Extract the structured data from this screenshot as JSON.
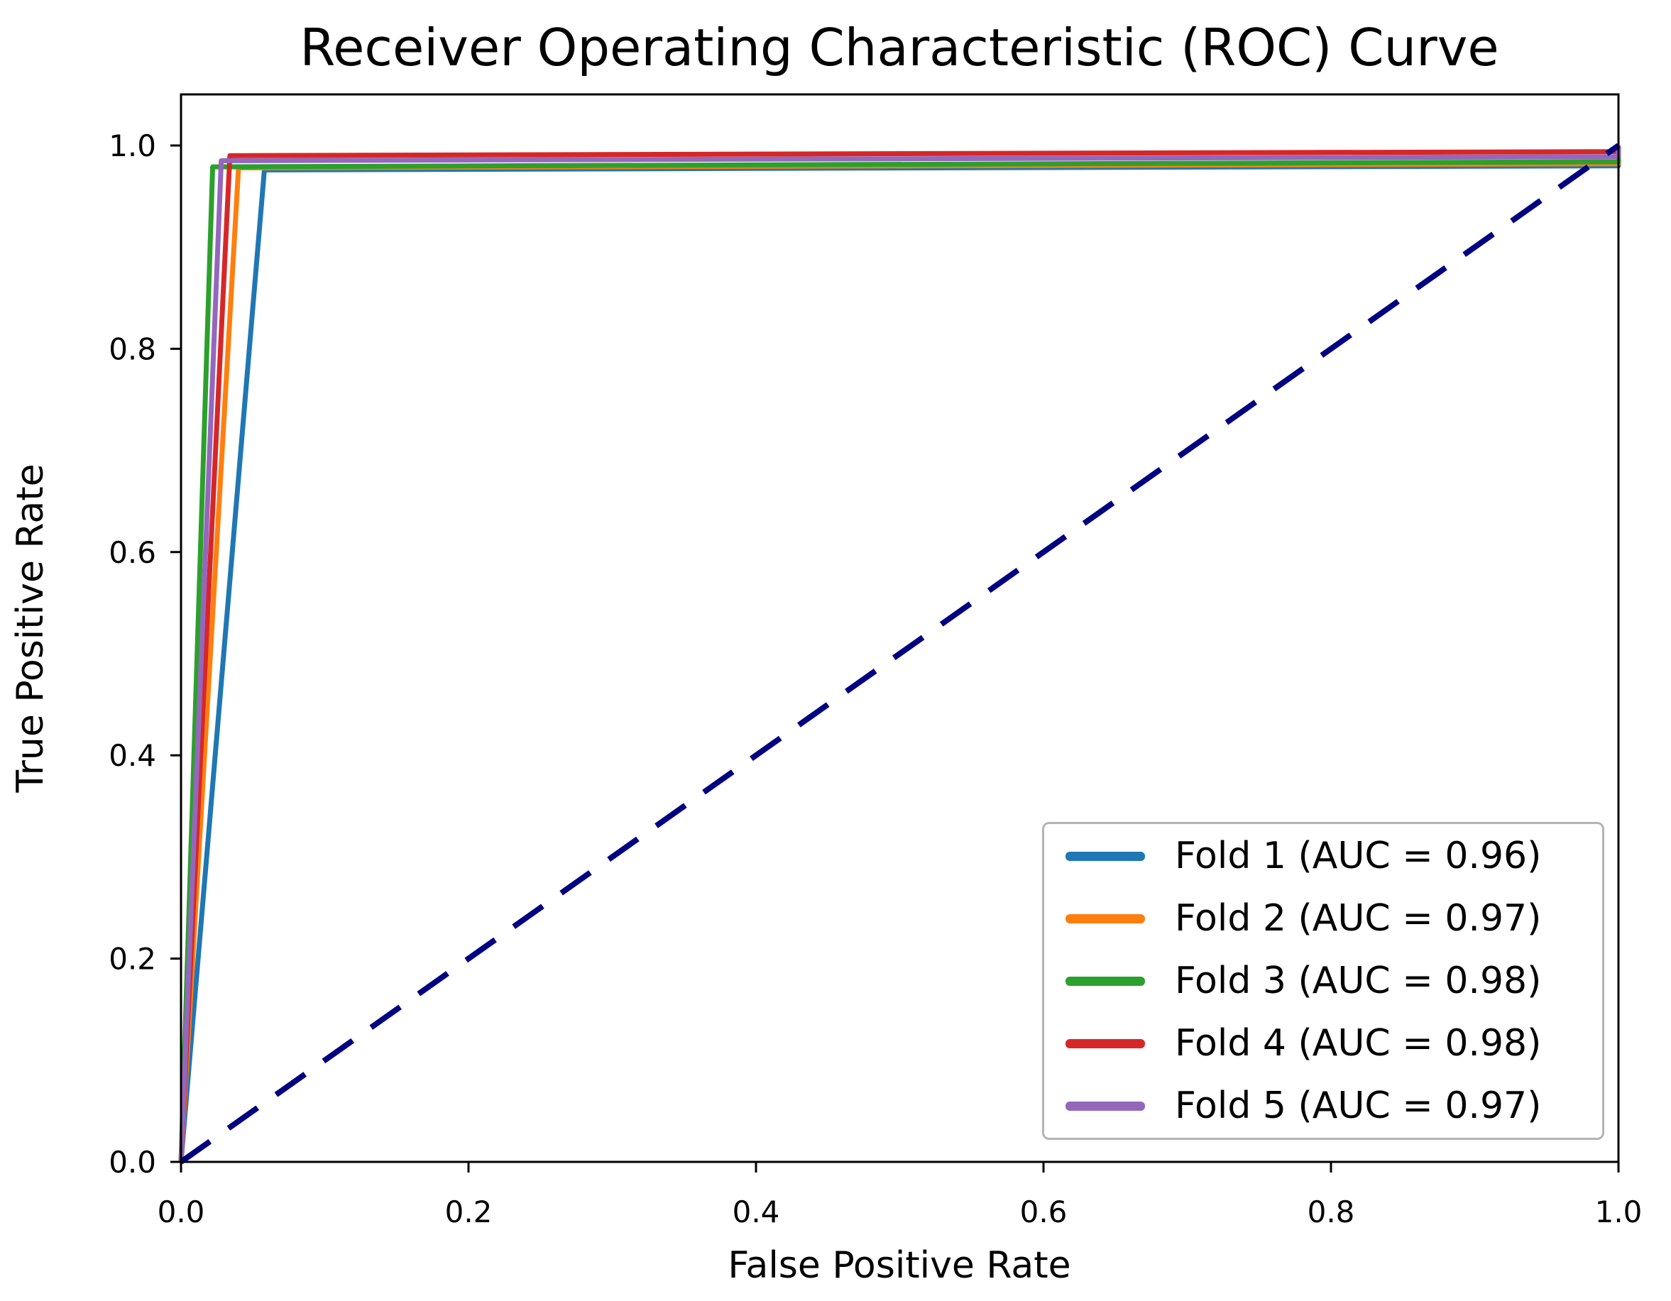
{
  "chart_data": {
    "type": "line",
    "title": "Receiver Operating Characteristic (ROC) Curve",
    "xlabel": "False Positive Rate",
    "ylabel": "True Positive Rate",
    "xlim": [
      0.0,
      1.0
    ],
    "ylim": [
      0.0,
      1.05
    ],
    "grid": false,
    "legend_position": "lower right",
    "x_ticks": {
      "values": [
        0.0,
        0.2,
        0.4,
        0.6,
        0.8,
        1.0
      ],
      "labels": [
        "0.0",
        "0.2",
        "0.4",
        "0.6",
        "0.8",
        "1.0"
      ]
    },
    "y_ticks": {
      "values": [
        0.0,
        0.2,
        0.4,
        0.6,
        0.8,
        1.0
      ],
      "labels": [
        "0.0",
        "0.2",
        "0.4",
        "0.6",
        "0.8",
        "1.0"
      ]
    },
    "series": [
      {
        "name": "Fold 1",
        "label": "Fold 1 (AUC = 0.96)",
        "auc": 0.96,
        "color": "#1f77b4",
        "points": [
          [
            0.0,
            0.0
          ],
          [
            0.058,
            0.976
          ],
          [
            1.0,
            0.98
          ],
          [
            1.0,
            1.0
          ]
        ]
      },
      {
        "name": "Fold 2",
        "label": "Fold 2 (AUC = 0.97)",
        "auc": 0.97,
        "color": "#ff7f0e",
        "points": [
          [
            0.0,
            0.0
          ],
          [
            0.04,
            0.978
          ],
          [
            1.0,
            0.982
          ],
          [
            1.0,
            1.0
          ]
        ]
      },
      {
        "name": "Fold 3",
        "label": "Fold 3 (AUC = 0.98)",
        "auc": 0.98,
        "color": "#2ca02c",
        "points": [
          [
            0.0,
            0.0
          ],
          [
            0.022,
            0.979
          ],
          [
            1.0,
            0.984
          ],
          [
            1.0,
            1.0
          ]
        ]
      },
      {
        "name": "Fold 4",
        "label": "Fold 4 (AUC = 0.98)",
        "auc": 0.98,
        "color": "#d62728",
        "points": [
          [
            0.0,
            0.0
          ],
          [
            0.034,
            0.99
          ],
          [
            1.0,
            0.994
          ],
          [
            1.0,
            1.0
          ]
        ]
      },
      {
        "name": "Fold 5",
        "label": "Fold 5 (AUC = 0.97)",
        "auc": 0.97,
        "color": "#9467bd",
        "points": [
          [
            0.0,
            0.0
          ],
          [
            0.028,
            0.985
          ],
          [
            1.0,
            0.989
          ],
          [
            1.0,
            1.0
          ]
        ]
      }
    ],
    "diagonal": {
      "color": "#000080",
      "style": "dashed",
      "points": [
        [
          0.0,
          0.0
        ],
        [
          1.0,
          1.0
        ]
      ]
    },
    "colors": {
      "spine": "#000000",
      "background": "#ffffff",
      "legend_border": "#b4b4b4"
    }
  }
}
